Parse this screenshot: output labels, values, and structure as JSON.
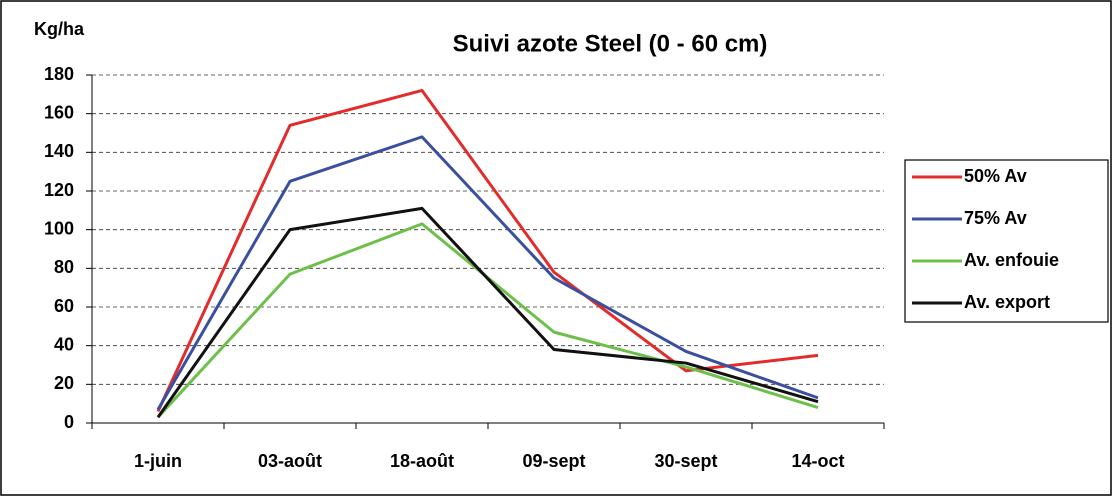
{
  "chart_data": {
    "type": "line",
    "title": "Suivi azote Steel (0 - 60 cm)",
    "y_label": "Kg/ha",
    "categories": [
      "1-juin",
      "03-août",
      "18-août",
      "09-sept",
      "30-sept",
      "14-oct"
    ],
    "series": [
      {
        "name": "50% Av",
        "color": "#e32b2b",
        "values": [
          6,
          154,
          172,
          78,
          27,
          35
        ]
      },
      {
        "name": "75% Av",
        "color": "#3a4f9e",
        "values": [
          7,
          125,
          148,
          75,
          37,
          13
        ]
      },
      {
        "name": "Av. enfouie",
        "color": "#6cc04a",
        "values": [
          3,
          77,
          103,
          47,
          29,
          8
        ]
      },
      {
        "name": "Av. export",
        "color": "#111111",
        "values": [
          3,
          100,
          111,
          38,
          31,
          11
        ]
      }
    ],
    "ylim": [
      0,
      180
    ],
    "yticks": [
      0,
      20,
      40,
      60,
      80,
      100,
      120,
      140,
      160,
      180
    ],
    "grid": true,
    "legend": "right"
  }
}
